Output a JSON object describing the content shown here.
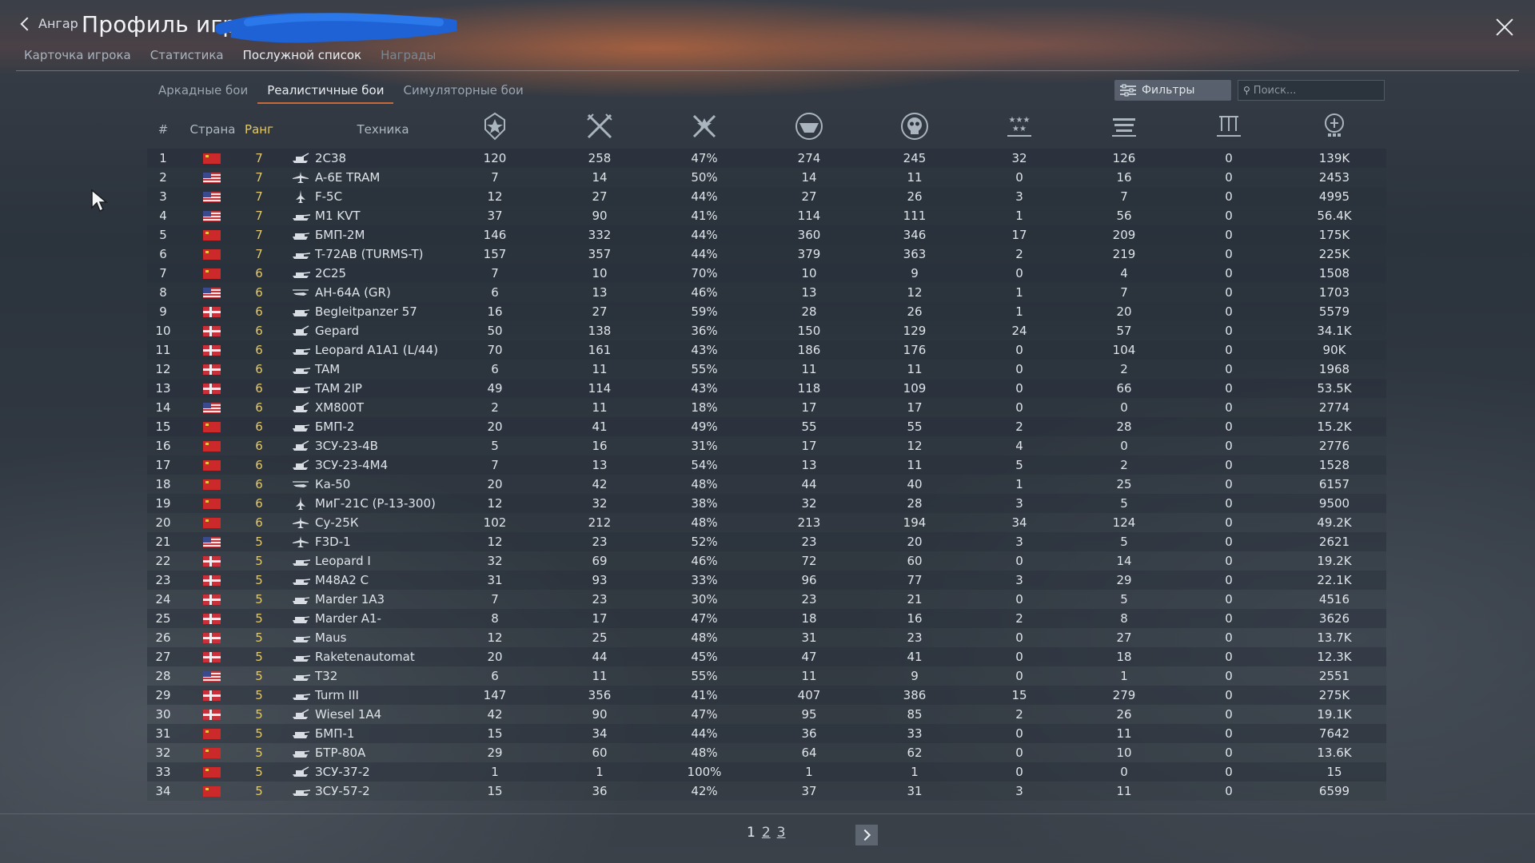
{
  "header": {
    "back_label": "Ангар",
    "title": "Профиль игрока",
    "tabs": [
      {
        "label": "Карточка игрока",
        "state": "normal"
      },
      {
        "label": "Статистика",
        "state": "normal"
      },
      {
        "label": "Послужной список",
        "state": "active"
      },
      {
        "label": "Награды",
        "state": "dim"
      }
    ]
  },
  "modes": [
    {
      "label": "Аркадные бои",
      "active": false
    },
    {
      "label": "Реалистичные бои",
      "active": true
    },
    {
      "label": "Симуляторные бои",
      "active": false
    }
  ],
  "toolbar": {
    "filters_label": "Фильтры",
    "search_placeholder": "Поиск..."
  },
  "table": {
    "headers": {
      "num": "#",
      "country": "Страна",
      "rank": "Ранг",
      "vehicle": "Техника"
    },
    "stat_icons": [
      "victories-icon",
      "battles-icon",
      "win-rate-icon",
      "respawns-icon",
      "deaths-icon",
      "ground-kills-icon",
      "air-kills-icon",
      "naval-kills-icon",
      "activity-icon"
    ],
    "rows": [
      {
        "n": "1",
        "flag": "ussr",
        "rank": "7",
        "type": "spaa",
        "name": "2С38",
        "s": [
          "120",
          "258",
          "47%",
          "274",
          "245",
          "32",
          "126",
          "0",
          "139K"
        ]
      },
      {
        "n": "2",
        "flag": "usa",
        "rank": "7",
        "type": "plane",
        "name": "A-6E TRAM",
        "s": [
          "7",
          "14",
          "50%",
          "14",
          "11",
          "0",
          "16",
          "0",
          "2453"
        ]
      },
      {
        "n": "3",
        "flag": "usa",
        "rank": "7",
        "type": "jet",
        "name": "F-5C",
        "s": [
          "12",
          "27",
          "44%",
          "27",
          "26",
          "3",
          "7",
          "0",
          "4995"
        ]
      },
      {
        "n": "4",
        "flag": "usa",
        "rank": "7",
        "type": "tank",
        "name": "M1 KVT",
        "s": [
          "37",
          "90",
          "41%",
          "114",
          "111",
          "1",
          "56",
          "0",
          "56.4K"
        ]
      },
      {
        "n": "5",
        "flag": "ussr",
        "rank": "7",
        "type": "light",
        "name": "БМП-2М",
        "s": [
          "146",
          "332",
          "44%",
          "360",
          "346",
          "17",
          "209",
          "0",
          "175K"
        ]
      },
      {
        "n": "6",
        "flag": "ussr",
        "rank": "7",
        "type": "tank",
        "name": "T-72AB (TURMS-T)",
        "s": [
          "157",
          "357",
          "44%",
          "379",
          "363",
          "2",
          "219",
          "0",
          "225K"
        ]
      },
      {
        "n": "7",
        "flag": "ussr",
        "rank": "6",
        "type": "tank",
        "name": "2С25",
        "s": [
          "7",
          "10",
          "70%",
          "10",
          "9",
          "0",
          "4",
          "0",
          "1508"
        ]
      },
      {
        "n": "8",
        "flag": "usa",
        "rank": "6",
        "type": "heli",
        "name": "AH-64A (GR)",
        "s": [
          "6",
          "13",
          "46%",
          "13",
          "12",
          "1",
          "7",
          "0",
          "1703"
        ]
      },
      {
        "n": "9",
        "flag": "ger",
        "rank": "6",
        "type": "light",
        "name": "Begleitpanzer 57",
        "s": [
          "16",
          "27",
          "59%",
          "28",
          "26",
          "1",
          "20",
          "0",
          "5579"
        ]
      },
      {
        "n": "10",
        "flag": "ger",
        "rank": "6",
        "type": "spaa",
        "name": "Gepard",
        "s": [
          "50",
          "138",
          "36%",
          "150",
          "129",
          "24",
          "57",
          "0",
          "34.1K"
        ]
      },
      {
        "n": "11",
        "flag": "ger",
        "rank": "6",
        "type": "tank",
        "name": "Leopard A1A1 (L/44)",
        "s": [
          "70",
          "161",
          "43%",
          "186",
          "176",
          "0",
          "104",
          "0",
          "90K"
        ]
      },
      {
        "n": "12",
        "flag": "ger",
        "rank": "6",
        "type": "tank",
        "name": "TAM",
        "s": [
          "6",
          "11",
          "55%",
          "11",
          "11",
          "0",
          "2",
          "0",
          "1968"
        ]
      },
      {
        "n": "13",
        "flag": "ger",
        "rank": "6",
        "type": "tank",
        "name": "TAM 2IP",
        "s": [
          "49",
          "114",
          "43%",
          "118",
          "109",
          "0",
          "66",
          "0",
          "53.5K"
        ]
      },
      {
        "n": "14",
        "flag": "usa",
        "rank": "6",
        "type": "spaa",
        "name": "XM800T",
        "s": [
          "2",
          "11",
          "18%",
          "17",
          "17",
          "0",
          "0",
          "0",
          "2774"
        ]
      },
      {
        "n": "15",
        "flag": "ussr",
        "rank": "6",
        "type": "light",
        "name": "БМП-2",
        "s": [
          "20",
          "41",
          "49%",
          "55",
          "55",
          "2",
          "28",
          "0",
          "15.2K"
        ]
      },
      {
        "n": "16",
        "flag": "ussr",
        "rank": "6",
        "type": "spaa",
        "name": "ЗСУ-23-4В",
        "s": [
          "5",
          "16",
          "31%",
          "17",
          "12",
          "4",
          "0",
          "0",
          "2776"
        ]
      },
      {
        "n": "17",
        "flag": "ussr",
        "rank": "6",
        "type": "spaa",
        "name": "ЗСУ-23-4М4",
        "s": [
          "7",
          "13",
          "54%",
          "13",
          "11",
          "5",
          "2",
          "0",
          "1528"
        ]
      },
      {
        "n": "18",
        "flag": "ussr",
        "rank": "6",
        "type": "heli",
        "name": "Ка-50",
        "s": [
          "20",
          "42",
          "48%",
          "44",
          "40",
          "1",
          "25",
          "0",
          "6157"
        ]
      },
      {
        "n": "19",
        "flag": "ussr",
        "rank": "6",
        "type": "jet",
        "name": "МиГ-21С (Р-13-300)",
        "s": [
          "12",
          "32",
          "38%",
          "32",
          "28",
          "3",
          "5",
          "0",
          "9500"
        ]
      },
      {
        "n": "20",
        "flag": "ussr",
        "rank": "6",
        "type": "plane",
        "name": "Су-25К",
        "s": [
          "102",
          "212",
          "48%",
          "213",
          "194",
          "34",
          "124",
          "0",
          "49.2K"
        ]
      },
      {
        "n": "21",
        "flag": "usa",
        "rank": "5",
        "type": "plane",
        "name": "F3D-1",
        "s": [
          "12",
          "23",
          "52%",
          "23",
          "20",
          "3",
          "5",
          "0",
          "2621"
        ]
      },
      {
        "n": "22",
        "flag": "ger",
        "rank": "5",
        "type": "tank",
        "name": "Leopard I",
        "s": [
          "32",
          "69",
          "46%",
          "72",
          "60",
          "0",
          "14",
          "0",
          "19.2K"
        ]
      },
      {
        "n": "23",
        "flag": "ger",
        "rank": "5",
        "type": "tank",
        "name": "M48A2 C",
        "s": [
          "31",
          "93",
          "33%",
          "96",
          "77",
          "3",
          "29",
          "0",
          "22.1K"
        ]
      },
      {
        "n": "24",
        "flag": "ger",
        "rank": "5",
        "type": "light",
        "name": "Marder 1A3",
        "s": [
          "7",
          "23",
          "30%",
          "23",
          "21",
          "0",
          "5",
          "0",
          "4516"
        ]
      },
      {
        "n": "25",
        "flag": "ger",
        "rank": "5",
        "type": "light",
        "name": "Marder A1-",
        "s": [
          "8",
          "17",
          "47%",
          "18",
          "16",
          "2",
          "8",
          "0",
          "3626"
        ]
      },
      {
        "n": "26",
        "flag": "ger",
        "rank": "5",
        "type": "tank",
        "name": "Maus",
        "s": [
          "12",
          "25",
          "48%",
          "31",
          "23",
          "0",
          "27",
          "0",
          "13.7K"
        ]
      },
      {
        "n": "27",
        "flag": "ger",
        "rank": "5",
        "type": "tank",
        "name": "Raketenautomat",
        "s": [
          "20",
          "44",
          "45%",
          "47",
          "41",
          "0",
          "18",
          "0",
          "12.3K"
        ]
      },
      {
        "n": "28",
        "flag": "usa",
        "rank": "5",
        "type": "tank",
        "name": "T32",
        "s": [
          "6",
          "11",
          "55%",
          "11",
          "9",
          "0",
          "1",
          "0",
          "2551"
        ]
      },
      {
        "n": "29",
        "flag": "ger",
        "rank": "5",
        "type": "tank",
        "name": "Turm III",
        "s": [
          "147",
          "356",
          "41%",
          "407",
          "386",
          "15",
          "279",
          "0",
          "275K"
        ]
      },
      {
        "n": "30",
        "flag": "ger",
        "rank": "5",
        "type": "spaa",
        "name": "Wiesel 1A4",
        "s": [
          "42",
          "90",
          "47%",
          "95",
          "85",
          "2",
          "26",
          "0",
          "19.1K"
        ]
      },
      {
        "n": "31",
        "flag": "ussr",
        "rank": "5",
        "type": "light",
        "name": "БМП-1",
        "s": [
          "15",
          "34",
          "44%",
          "36",
          "33",
          "0",
          "11",
          "0",
          "7642"
        ]
      },
      {
        "n": "32",
        "flag": "ussr",
        "rank": "5",
        "type": "light",
        "name": "БТР-80А",
        "s": [
          "29",
          "60",
          "48%",
          "64",
          "62",
          "0",
          "10",
          "0",
          "13.6K"
        ]
      },
      {
        "n": "33",
        "flag": "ussr",
        "rank": "5",
        "type": "spaa",
        "name": "ЗСУ-37-2",
        "s": [
          "1",
          "1",
          "100%",
          "1",
          "1",
          "0",
          "0",
          "0",
          "15"
        ]
      },
      {
        "n": "34",
        "flag": "ussr",
        "rank": "5",
        "type": "tank",
        "name": "ЗСУ-57-2",
        "s": [
          "15",
          "36",
          "42%",
          "37",
          "31",
          "3",
          "11",
          "0",
          "6599"
        ]
      }
    ]
  },
  "pager": {
    "pages": [
      "1",
      "2",
      "3"
    ],
    "current": "1"
  },
  "colors": {
    "accent": "#c66a3b",
    "rank": "#e3c96a"
  }
}
